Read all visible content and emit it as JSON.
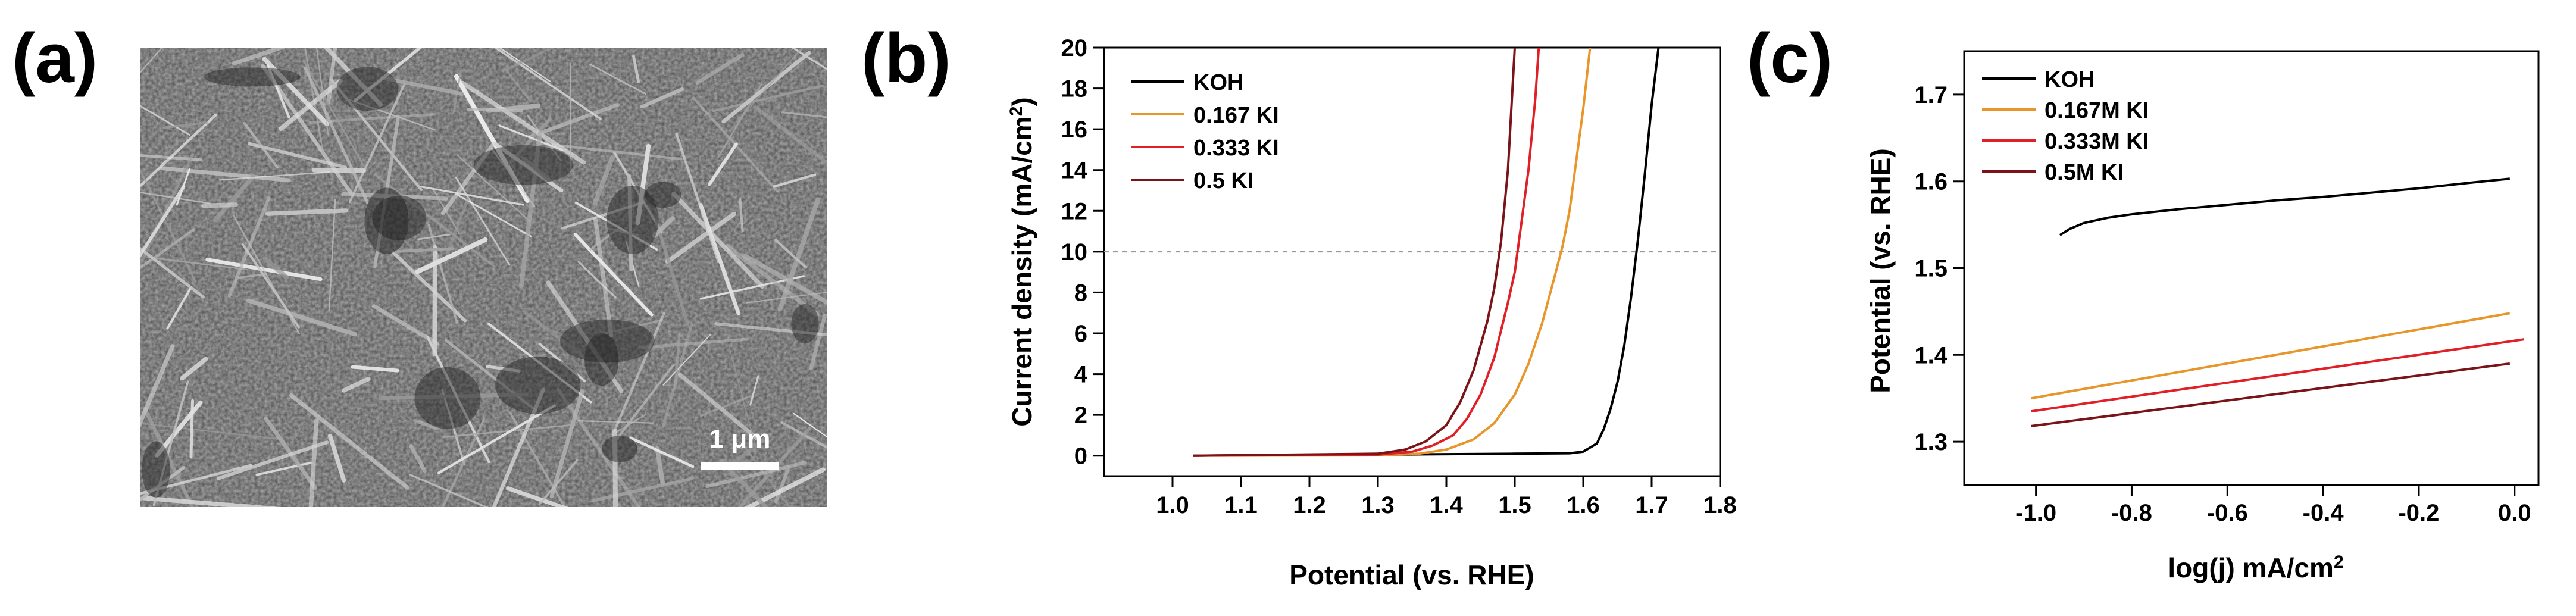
{
  "panel_labels": {
    "a": "(a)",
    "b": "(b)",
    "c": "(c)"
  },
  "sem": {
    "scale_bar_label": "1 μm"
  },
  "chart_data": [
    {
      "type": "line",
      "panel": "(b)",
      "title": "",
      "xlabel": "Potential (vs. RHE)",
      "ylabel": "Current density (mA/cm²)",
      "ylabel_main": "Current density (mA/cm",
      "ylabel_sup": "2",
      "ylabel_end": ")",
      "xlim": [
        0.9,
        1.8
      ],
      "ylim": [
        -1,
        20
      ],
      "xticks": [
        1.0,
        1.1,
        1.2,
        1.3,
        1.4,
        1.5,
        1.6,
        1.7,
        1.8
      ],
      "xtick_labels": [
        "1.0",
        "1.1",
        "1.2",
        "1.3",
        "1.4",
        "1.5",
        "1.6",
        "1.7",
        "1.8"
      ],
      "yticks": [
        0,
        2,
        4,
        6,
        8,
        10,
        12,
        14,
        16,
        18,
        20
      ],
      "ytick_labels": [
        "0",
        "2",
        "4",
        "6",
        "8",
        "10",
        "12",
        "14",
        "16",
        "18",
        "20"
      ],
      "reference_line": {
        "y": 10,
        "style": "dashed"
      },
      "legend_position": "top-left",
      "series": [
        {
          "name": "KOH",
          "color": "#000000",
          "x": [
            1.03,
            1.3,
            1.5,
            1.58,
            1.6,
            1.62,
            1.63,
            1.64,
            1.65,
            1.66,
            1.67,
            1.68,
            1.69,
            1.7,
            1.71
          ],
          "y": [
            0.0,
            0.05,
            0.1,
            0.12,
            0.2,
            0.6,
            1.3,
            2.3,
            3.6,
            5.4,
            7.8,
            10.6,
            13.8,
            17.2,
            20.0
          ]
        },
        {
          "name": "0.167 KI",
          "color": "#e8952a",
          "x": [
            1.03,
            1.3,
            1.36,
            1.4,
            1.44,
            1.47,
            1.5,
            1.52,
            1.54,
            1.56,
            1.57,
            1.58,
            1.59,
            1.6,
            1.61
          ],
          "y": [
            0.0,
            0.02,
            0.1,
            0.3,
            0.8,
            1.6,
            3.0,
            4.5,
            6.5,
            9.0,
            10.3,
            12.0,
            14.5,
            17.0,
            20.0
          ]
        },
        {
          "name": "0.333 KI",
          "color": "#e01f26",
          "x": [
            1.03,
            1.3,
            1.35,
            1.38,
            1.41,
            1.43,
            1.45,
            1.47,
            1.49,
            1.5,
            1.51,
            1.52,
            1.53,
            1.535
          ],
          "y": [
            0.0,
            0.05,
            0.2,
            0.5,
            1.0,
            1.8,
            3.0,
            4.8,
            7.5,
            9.0,
            11.5,
            14.0,
            17.5,
            20.0
          ]
        },
        {
          "name": "0.5 KI",
          "color": "#7a1418",
          "x": [
            1.03,
            1.3,
            1.34,
            1.37,
            1.4,
            1.42,
            1.44,
            1.46,
            1.47,
            1.48,
            1.49,
            1.5
          ],
          "y": [
            0.0,
            0.1,
            0.3,
            0.7,
            1.5,
            2.6,
            4.2,
            6.6,
            8.2,
            10.5,
            14.0,
            20.0
          ]
        }
      ]
    },
    {
      "type": "line",
      "panel": "(c)",
      "title": "",
      "xlabel": "log(j) mA/cm²",
      "xlabel_main": "log(j) mA/cm",
      "xlabel_sup": "2",
      "ylabel": "Potential (vs. RHE)",
      "xlim": [
        -1.15,
        0.05
      ],
      "ylim": [
        1.25,
        1.75
      ],
      "xticks": [
        -1.0,
        -0.8,
        -0.6,
        -0.4,
        -0.2,
        0.0
      ],
      "xtick_labels": [
        "-1.0",
        "-0.8",
        "-0.6",
        "-0.4",
        "-0.2",
        "0.0"
      ],
      "yticks": [
        1.3,
        1.4,
        1.5,
        1.6,
        1.7
      ],
      "ytick_labels": [
        "1.3",
        "1.4",
        "1.5",
        "1.6",
        "1.7"
      ],
      "legend_position": "top-left",
      "series": [
        {
          "name": "KOH",
          "color": "#000000",
          "x": [
            -0.95,
            -0.93,
            -0.9,
            -0.85,
            -0.8,
            -0.7,
            -0.6,
            -0.5,
            -0.4,
            -0.3,
            -0.2,
            -0.1,
            -0.01
          ],
          "y": [
            1.538,
            1.545,
            1.552,
            1.558,
            1.562,
            1.568,
            1.573,
            1.578,
            1.582,
            1.587,
            1.592,
            1.598,
            1.603
          ]
        },
        {
          "name": "0.167M KI",
          "color": "#e8952a",
          "x": [
            -1.01,
            -0.01
          ],
          "y": [
            1.35,
            1.448
          ]
        },
        {
          "name": "0.333M KI",
          "color": "#e01f26",
          "x": [
            -1.01,
            0.02
          ],
          "y": [
            1.335,
            1.418
          ]
        },
        {
          "name": "0.5M KI",
          "color": "#7a1418",
          "x": [
            -1.01,
            -0.01
          ],
          "y": [
            1.318,
            1.39
          ]
        }
      ]
    }
  ]
}
